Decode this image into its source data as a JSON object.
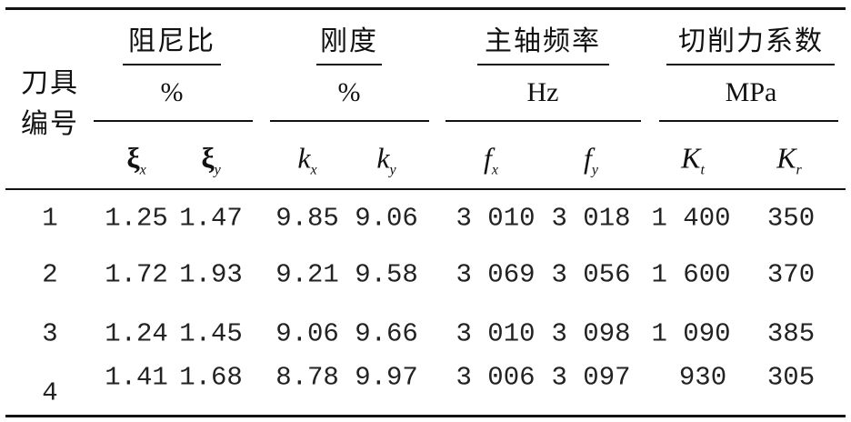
{
  "table": {
    "row_header": [
      "刀具",
      "编号"
    ],
    "groups": [
      {
        "name": "阻尼比",
        "unit": "%",
        "cols": [
          {
            "sym": "ξ",
            "sub": "x"
          },
          {
            "sym": "ξ",
            "sub": "y"
          }
        ]
      },
      {
        "name": "刚度",
        "unit": "%",
        "cols": [
          {
            "sym": "k",
            "sub": "x"
          },
          {
            "sym": "k",
            "sub": "y"
          }
        ]
      },
      {
        "name": "主轴频率",
        "unit": "Hz",
        "cols": [
          {
            "sym": "f",
            "sub": "x"
          },
          {
            "sym": "f",
            "sub": "y"
          }
        ]
      },
      {
        "name": "切削力系数",
        "unit": "MPa",
        "cols": [
          {
            "sym": "K",
            "sub": "t"
          },
          {
            "sym": "K",
            "sub": "r"
          }
        ]
      }
    ],
    "rows": [
      [
        "1",
        "1.25",
        "1.47",
        "9.85",
        "9.06",
        "3 010",
        "3 018",
        "1 400",
        "350"
      ],
      [
        "2",
        "1.72",
        "1.93",
        "9.21",
        "9.58",
        "3 069",
        "3 056",
        "1 600",
        "370"
      ],
      [
        "3",
        "1.24",
        "1.45",
        "9.06",
        "9.66",
        "3 010",
        "3 098",
        "1 090",
        "385"
      ],
      [
        "4",
        "1.41",
        "1.68",
        "8.78",
        "9.97",
        "3 006",
        "3 097",
        "930",
        "305"
      ]
    ]
  }
}
